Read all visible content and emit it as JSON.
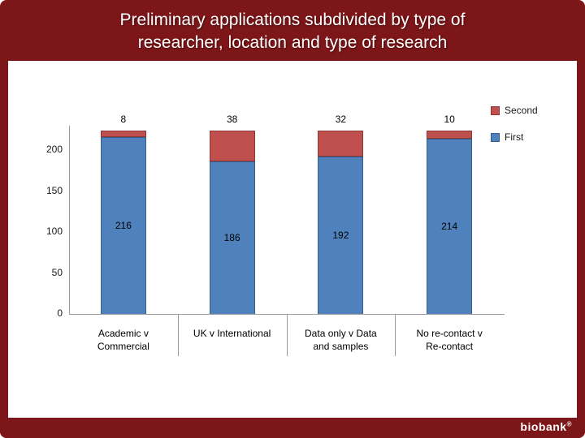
{
  "title": {
    "line1": "Preliminary applications subdivided by type of",
    "line2": "researcher, location and type of research"
  },
  "footer": {
    "logo": "biobank",
    "trademark": "®"
  },
  "colors": {
    "slide_background": "#7d1618",
    "panel_background": "#ffffff",
    "series_first_blue": "#4F81BD",
    "series_second_red": "#C0504D"
  },
  "chart_data": {
    "type": "bar",
    "stacked": true,
    "title": "",
    "xlabel": "",
    "ylabel": "",
    "categories": [
      "Academic v Commercial",
      "UK v International",
      "Data only v Data and samples",
      "No re-contact v Re-contact"
    ],
    "category_lines": [
      [
        "Academic v",
        "Commercial"
      ],
      [
        "UK v International"
      ],
      [
        "Data only v Data",
        "and samples"
      ],
      [
        "No re-contact v",
        "Re-contact"
      ]
    ],
    "series": [
      {
        "name": "First",
        "color": "#4F81BD",
        "border": "#385D8A",
        "values": [
          216,
          186,
          192,
          214
        ]
      },
      {
        "name": "Second",
        "color": "#C0504D",
        "border": "#8C3836",
        "values": [
          8,
          38,
          32,
          10
        ]
      }
    ],
    "y_ticks": [
      0,
      50,
      100,
      150,
      200
    ],
    "ylim": [
      0,
      230
    ],
    "grid": false,
    "legend_position": "right",
    "legend_order": [
      "Second",
      "First"
    ]
  }
}
